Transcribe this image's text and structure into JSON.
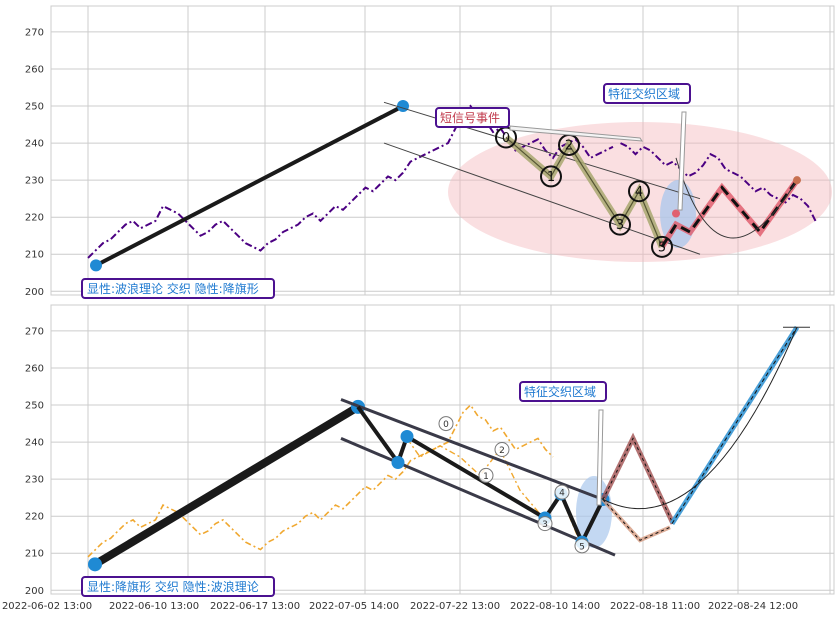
{
  "colors": {
    "grid": "#cccccc",
    "price_top": "#4b0082",
    "price_bottom": "#f0a830",
    "main_line": "#1a1a1a",
    "dot_blue": "#1f8ad4",
    "channel_line": "#444444",
    "ellipse_red": "#f4b8bc",
    "ellipse_blue": "#a9c7ec",
    "box_border": "#4b1190",
    "text_blue": "#1f7ad0",
    "text_red": "#c0394b",
    "proj_red": "#e06070",
    "proj_orange": "#c87050",
    "proj_blue": "#4aa0d8",
    "proj_brown": "#a05050",
    "olive_fill": "#a8a870"
  },
  "chart_data": [
    {
      "type": "line",
      "panel": "top",
      "ylim": [
        199,
        277
      ],
      "yticks": [
        200,
        210,
        220,
        230,
        240,
        250,
        260,
        270
      ],
      "series": [
        {
          "x": [
            0,
            1,
            2,
            3,
            4,
            5,
            6,
            7,
            8,
            9,
            10,
            11,
            12,
            13,
            14,
            15,
            16,
            17,
            18,
            19,
            20,
            21,
            22,
            23,
            24,
            25,
            26,
            27,
            28,
            29,
            30,
            31,
            32,
            33,
            34,
            35,
            36,
            37,
            38,
            39,
            40,
            41,
            42,
            43,
            44,
            45,
            46,
            47,
            48,
            49,
            50,
            51,
            52,
            53,
            54,
            55,
            56,
            57,
            58,
            59,
            60,
            61,
            62,
            63,
            64,
            65,
            66,
            67,
            68,
            69,
            70
          ],
          "y": [
            209,
            211,
            213,
            214,
            216,
            218,
            219,
            217,
            218,
            219,
            223,
            222,
            221,
            219,
            217,
            215,
            216,
            218,
            219,
            217,
            215,
            213,
            212,
            211,
            213,
            214,
            216,
            217,
            218,
            220,
            221,
            219,
            221,
            223,
            222,
            224,
            226,
            228,
            227,
            229,
            231,
            230,
            232,
            235,
            236,
            237,
            238,
            239,
            240,
            244,
            248,
            250,
            247,
            246,
            243,
            244,
            241,
            238,
            239,
            240,
            241,
            238,
            236,
            239,
            240,
            241,
            239,
            236,
            237,
            238,
            239
          ]
        },
        {
          "x": [
            71,
            72,
            73,
            74,
            75,
            76,
            77,
            78,
            79,
            80,
            81,
            82,
            83,
            84,
            85,
            86,
            87,
            88,
            89,
            90,
            91,
            92,
            93,
            94,
            95,
            96,
            97
          ],
          "y": [
            240,
            239,
            237,
            239,
            238,
            236,
            234,
            235,
            233,
            231,
            232,
            234,
            237,
            236,
            233,
            232,
            231,
            229,
            227,
            228,
            226,
            225,
            224,
            226,
            225,
            223,
            219
          ]
        }
      ],
      "wave_points": [
        {
          "label": "0",
          "x": 62,
          "y": 241.5
        },
        {
          "label": "1",
          "x": 73,
          "y": 231
        },
        {
          "label": "2",
          "x": 77,
          "y": 239.5
        },
        {
          "label": "3",
          "x": 85,
          "y": 218
        },
        {
          "label": "4",
          "x": 89,
          "y": 227
        },
        {
          "label": "5",
          "x": 95,
          "y": 212
        }
      ],
      "annotations": {
        "bottom_box": "显性:波浪理论 交织 隐性:降旗形",
        "zone_box": "特征交织区域",
        "signal_box": "短信号事件",
        "start_marker": "0"
      }
    },
    {
      "type": "line",
      "panel": "bottom",
      "ylim": [
        199,
        277
      ],
      "yticks": [
        200,
        210,
        220,
        230,
        240,
        250,
        260,
        270
      ],
      "wave_points": [
        {
          "label": "0",
          "x": 57,
          "y": 245
        },
        {
          "label": "1",
          "x": 63,
          "y": 231
        },
        {
          "label": "2",
          "x": 66,
          "y": 238
        },
        {
          "label": "3",
          "x": 76,
          "y": 219
        },
        {
          "label": "4",
          "x": 79,
          "y": 226
        },
        {
          "label": "5",
          "x": 81,
          "y": 212
        }
      ],
      "annotations": {
        "bottom_box": "显性:降旗形 交织 隐性:波浪理论",
        "zone_box": "特征交织区域"
      }
    }
  ],
  "x_ticks": [
    "2022-06-02 13:00",
    "2022-06-10 13:00",
    "2022-06-17 13:00",
    "2022-07-05 14:00",
    "2022-07-22 13:00",
    "2022-08-10 14:00",
    "2022-08-18 11:00",
    "2022-08-24 12:00"
  ],
  "labels": {
    "top_bottom_box": "显性:波浪理论 交织 隐性:降旗形",
    "top_zone_box": "特征交织区域",
    "top_signal_box": "短信号事件",
    "bottom_bottom_box": "显性:降旗形 交织 隐性:波浪理论",
    "bottom_zone_box": "特征交织区域"
  }
}
